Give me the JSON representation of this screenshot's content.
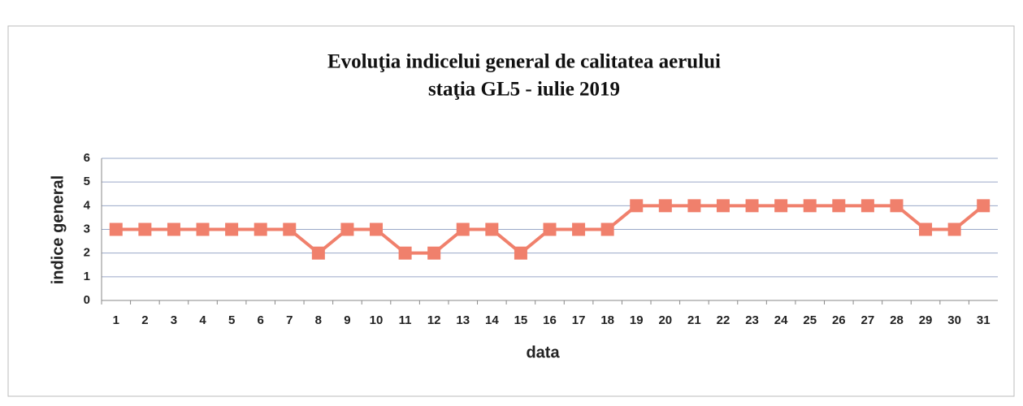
{
  "chart_data": {
    "type": "line",
    "title": "Evoluţia indicelui general de calitatea aerului",
    "subtitle": "staţia GL5 - iulie 2019",
    "x_label": "data",
    "y_label": "indice general",
    "categories": [
      "1",
      "2",
      "3",
      "4",
      "5",
      "6",
      "7",
      "8",
      "9",
      "10",
      "11",
      "12",
      "13",
      "14",
      "15",
      "16",
      "17",
      "18",
      "19",
      "20",
      "21",
      "22",
      "23",
      "24",
      "25",
      "26",
      "27",
      "28",
      "29",
      "30",
      "31"
    ],
    "values": [
      3,
      3,
      3,
      3,
      3,
      3,
      3,
      2,
      3,
      3,
      2,
      2,
      3,
      3,
      2,
      3,
      3,
      3,
      4,
      4,
      4,
      4,
      4,
      4,
      4,
      4,
      4,
      4,
      3,
      3,
      4
    ],
    "color": "#f0806c",
    "ylim": [
      0,
      6
    ],
    "yticks": [
      0,
      1,
      2,
      3,
      4,
      5,
      6
    ],
    "grid": true
  }
}
